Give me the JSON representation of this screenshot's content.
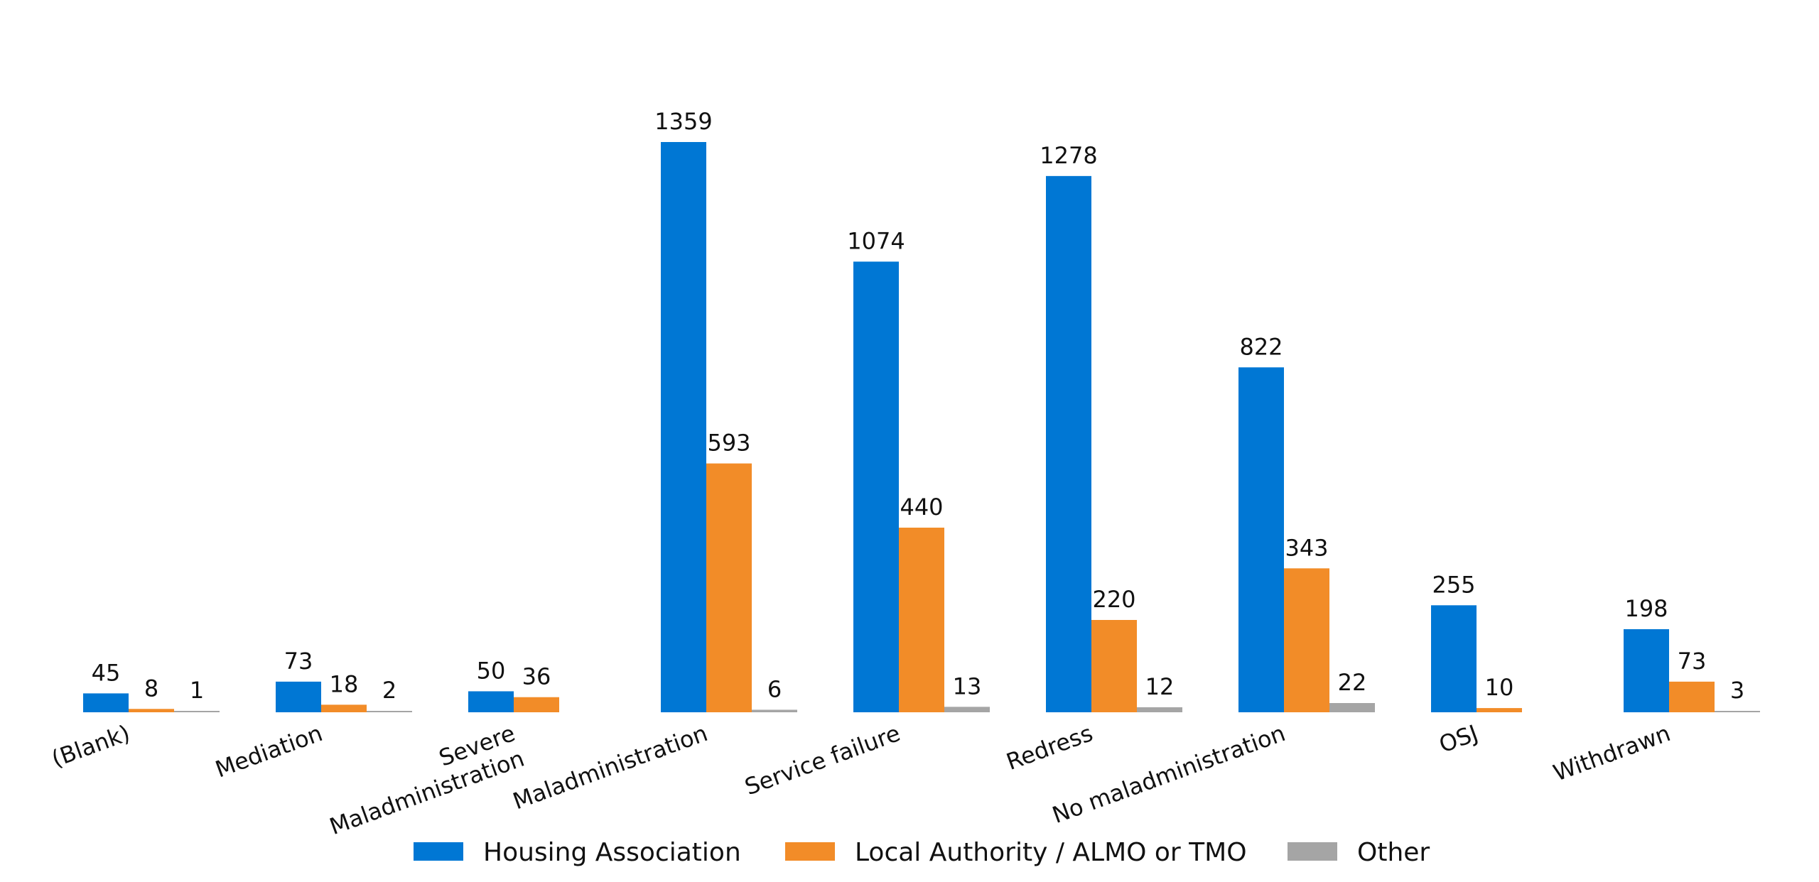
{
  "chart_data": {
    "type": "bar",
    "title": "",
    "xlabel": "",
    "ylabel": "",
    "categories": [
      "(Blank)",
      "Mediation",
      "Severe Maladministration",
      "Maladministration",
      "Service failure",
      "Redress",
      "No maladministration",
      "OSJ",
      "Withdrawn"
    ],
    "category_lines": [
      [
        "(Blank)"
      ],
      [
        "Mediation"
      ],
      [
        "Severe",
        "Maladministration"
      ],
      [
        "Maladministration"
      ],
      [
        "Service failure"
      ],
      [
        "Redress"
      ],
      [
        "No maladministration"
      ],
      [
        "OSJ"
      ],
      [
        "Withdrawn"
      ]
    ],
    "series": [
      {
        "name": "Housing Association",
        "color": "#0077D4",
        "values": [
          45,
          73,
          50,
          1359,
          1074,
          1278,
          822,
          255,
          198
        ]
      },
      {
        "name": "Local Authority / ALMO or TMO",
        "color": "#F28C28",
        "values": [
          8,
          18,
          36,
          593,
          440,
          220,
          343,
          10,
          73
        ]
      },
      {
        "name": "Other",
        "color": "#A5A5A5",
        "values": [
          1,
          2,
          null,
          6,
          13,
          12,
          22,
          null,
          3
        ]
      }
    ],
    "ylim": [
      0,
      1359
    ],
    "grid": false,
    "legend_position": "bottom-center",
    "show_y_axis": false
  }
}
